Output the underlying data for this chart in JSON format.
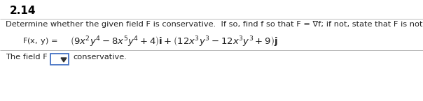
{
  "title": "2.14",
  "instruction": "Determine whether the given field F is conservative.  If so, find f so that F = ∇f; if not, state that F is not conservative.",
  "bottom_text_pre": "The field F",
  "bottom_text_post": "conservative.",
  "background_color": "#ffffff",
  "title_color": "#000000",
  "text_color": "#222222",
  "line_color": "#bbbbbb",
  "box_border_color": "#4472c4",
  "title_fontsize": 11,
  "body_fontsize": 8.2,
  "math_fontsize": 9.5,
  "fig_width": 6.04,
  "fig_height": 1.45,
  "dpi": 100
}
